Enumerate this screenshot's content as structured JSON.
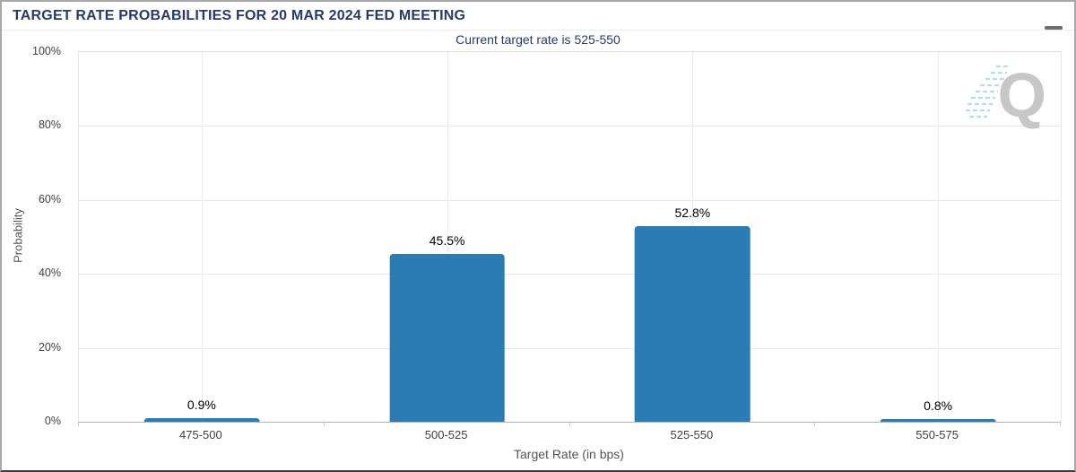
{
  "header": {
    "title": "TARGET RATE PROBABILITIES FOR 20 MAR 2024 FED MEETING",
    "menu_icon": "hamburger-icon"
  },
  "chart_data": {
    "type": "bar",
    "title": "TARGET RATE PROBABILITIES FOR 20 MAR 2024 FED MEETING",
    "subtitle": "Current target rate is 525-550",
    "categories": [
      "475-500",
      "500-525",
      "525-550",
      "550-575"
    ],
    "values": [
      0.9,
      45.5,
      52.8,
      0.8
    ],
    "value_labels": [
      "0.9%",
      "45.5%",
      "52.8%",
      "0.8%"
    ],
    "xlabel": "Target Rate (in bps)",
    "ylabel": "Probability",
    "ylim": [
      0,
      100
    ],
    "yticks": [
      "0%",
      "20%",
      "40%",
      "60%",
      "80%",
      "100%"
    ],
    "grid": "on",
    "legend": "none",
    "bar_color": "#2b7cb5"
  },
  "watermark": {
    "letter": "Q",
    "stripe_color": "#bcdaed",
    "letter_color": "#c7c7c7"
  },
  "colors": {
    "title": "#263a6b",
    "page_border": "#a8a8a8",
    "page_bottom_border": "#3c3c3c",
    "gridline": "#e7e7e7",
    "axis_line": "#b5b5b5"
  }
}
